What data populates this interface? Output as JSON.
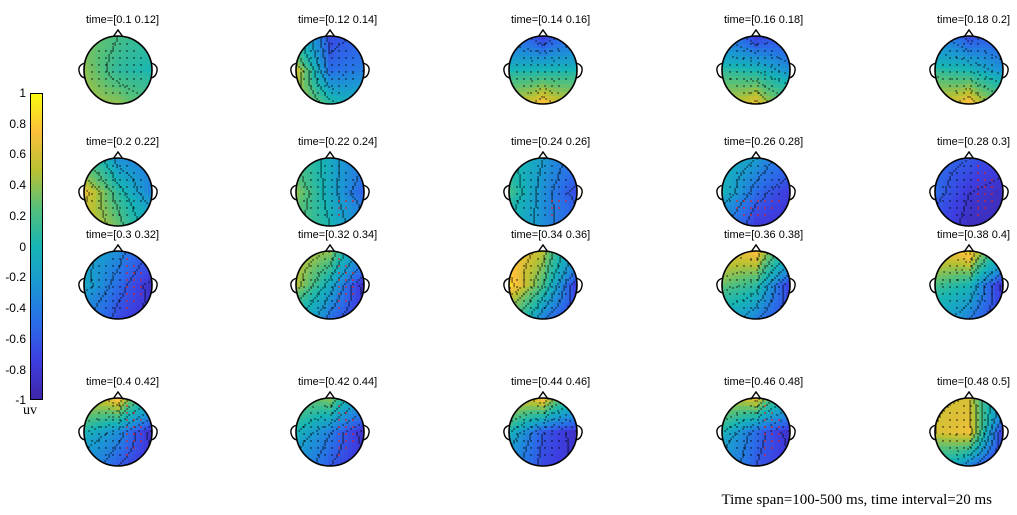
{
  "colorbar": {
    "ticks": [
      "1",
      "0.8",
      "0.6",
      "0.4",
      "0.2",
      "0",
      "-0.2",
      "-0.4",
      "-0.6",
      "-0.8",
      "-1"
    ],
    "unit": "uv",
    "colors": [
      "#f9fb0e",
      "#fcbf3c",
      "#b9c132",
      "#54c07a",
      "#17b5b4",
      "#1b97d3",
      "#2a6de8",
      "#3d3ee0",
      "#3e26a8"
    ]
  },
  "topomaps": [
    {
      "label": "time=[0.1 0.12]",
      "front": 0.2,
      "back": 0.4,
      "left": 0.4,
      "right": 0.0,
      "center": 0.1,
      "red_region": ""
    },
    {
      "label": "time=[0.12 0.14]",
      "front": -0.7,
      "back": 0.1,
      "left": 0.6,
      "right": -0.4,
      "center": -0.5,
      "red_region": ""
    },
    {
      "label": "time=[0.14 0.16]",
      "front": -0.8,
      "back": 0.8,
      "left": 0.0,
      "right": 0.0,
      "center": 0.0,
      "red_region": ""
    },
    {
      "label": "time=[0.16 0.18]",
      "front": -0.8,
      "back": 0.7,
      "left": 0.1,
      "right": -0.3,
      "center": 0.0,
      "red_region": ""
    },
    {
      "label": "time=[0.18 0.2]",
      "front": -0.7,
      "back": 0.8,
      "left": 0.1,
      "right": -0.3,
      "center": 0.0,
      "red_region": ""
    },
    {
      "label": "time=[0.2 0.22]",
      "front": -0.3,
      "back": 0.3,
      "left": 0.7,
      "right": -0.4,
      "center": 0.1,
      "red_region": ""
    },
    {
      "label": "time=[0.22 0.24]",
      "front": -0.1,
      "back": 0.0,
      "left": 0.4,
      "right": -0.6,
      "center": -0.1,
      "red_region": "right-back"
    },
    {
      "label": "time=[0.24 0.26]",
      "front": -0.2,
      "back": -0.3,
      "left": 0.2,
      "right": -0.7,
      "center": -0.3,
      "red_region": "right-back"
    },
    {
      "label": "time=[0.26 0.28]",
      "front": -0.2,
      "back": -0.8,
      "left": 0.0,
      "right": -0.8,
      "center": -0.5,
      "red_region": "back"
    },
    {
      "label": "time=[0.28 0.3]",
      "front": -0.6,
      "back": -0.9,
      "left": -0.5,
      "right": -0.9,
      "center": -0.8,
      "red_region": "right"
    },
    {
      "label": "time=[0.3 0.32]",
      "front": -0.3,
      "back": -0.7,
      "left": -0.1,
      "right": -0.9,
      "center": -0.5,
      "red_region": "right"
    },
    {
      "label": "time=[0.32 0.34]",
      "front": 0.4,
      "back": -0.5,
      "left": 0.5,
      "right": -0.9,
      "center": -0.1,
      "red_region": "right"
    },
    {
      "label": "time=[0.34 0.36]",
      "front": 0.5,
      "back": -0.4,
      "left": 0.9,
      "right": -0.8,
      "center": 0.2,
      "red_region": ""
    },
    {
      "label": "time=[0.36 0.38]",
      "front": 0.8,
      "back": -0.4,
      "left": 0.3,
      "right": -0.8,
      "center": 0.1,
      "red_region": ""
    },
    {
      "label": "time=[0.38 0.4]",
      "front": 0.9,
      "back": -0.4,
      "left": 0.2,
      "right": -0.9,
      "center": 0.0,
      "red_region": ""
    },
    {
      "label": "time=[0.4 0.42]",
      "front": 0.8,
      "back": -0.6,
      "left": 0.0,
      "right": -0.9,
      "center": -0.3,
      "red_region": "right"
    },
    {
      "label": "time=[0.42 0.44]",
      "front": 0.4,
      "back": -0.6,
      "left": 0.0,
      "right": -0.9,
      "center": -0.4,
      "red_region": "right"
    },
    {
      "label": "time=[0.44 0.46]",
      "front": 0.8,
      "back": -0.7,
      "left": 0.0,
      "right": -0.9,
      "center": -0.6,
      "red_region": ""
    },
    {
      "label": "time=[0.46 0.48]",
      "front": 0.7,
      "back": -0.6,
      "left": 0.0,
      "right": -0.9,
      "center": -0.5,
      "red_region": "right"
    },
    {
      "label": "time=[0.48 0.5]",
      "front": 0.6,
      "back": -0.4,
      "left": 0.6,
      "right": -0.8,
      "center": 0.7,
      "red_region": ""
    }
  ],
  "caption": "Time span=100-500 ms, time interval=20 ms"
}
